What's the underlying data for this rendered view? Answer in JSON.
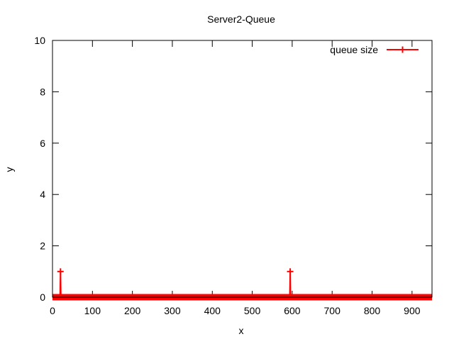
{
  "chart_data": {
    "type": "line",
    "title": "Server2-Queue",
    "xlabel": "x",
    "ylabel": "y",
    "xlim": [
      0,
      950
    ],
    "ylim": [
      0,
      10
    ],
    "xticks": [
      0,
      100,
      200,
      300,
      400,
      500,
      600,
      700,
      800,
      900
    ],
    "yticks": [
      0,
      2,
      4,
      6,
      8,
      10
    ],
    "grid": false,
    "legend_position": "top-right",
    "series": [
      {
        "name": "queue size",
        "color": "#ff0000",
        "marker": "plus",
        "x": [
          0,
          19,
          20,
          21,
          594,
          595,
          596,
          950
        ],
        "y": [
          0,
          0,
          1,
          0,
          0,
          1,
          0,
          0
        ]
      }
    ]
  }
}
